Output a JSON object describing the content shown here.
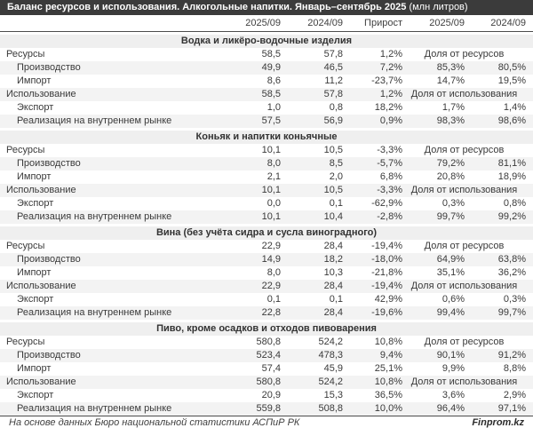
{
  "title": {
    "main": "Баланс ресурсов и использования. Алкогольные напитки. Январь–сентябрь 2025",
    "unit": " (млн литров)"
  },
  "colors": {
    "title_bar_bg": "#3b3b3b",
    "title_text": "#ffffff",
    "section_band_bg": "#efefef",
    "stripe_bg": "#f3f3f3",
    "rule_line": "#4d4d4d",
    "body_text": "#3a3a3a"
  },
  "chart_data": {
    "type": "table",
    "title": "Баланс ресурсов и использования. Алкогольные напитки. Январь–сентябрь 2025 (млн литров)",
    "columns": [
      "2025/09",
      "2024/09",
      "Прирост",
      "2025/09",
      "2024/09"
    ],
    "sections": [
      {
        "name": "Водка и ликёро-водочные изделия",
        "rows": [
          {
            "label": "Ресурсы",
            "indent": false,
            "values": [
              "58,5",
              "57,8",
              "1,2%"
            ],
            "span_label": "Доля от ресурсов"
          },
          {
            "label": "Производство",
            "indent": true,
            "values": [
              "49,9",
              "46,5",
              "7,2%",
              "85,3%",
              "80,5%"
            ]
          },
          {
            "label": "Импорт",
            "indent": true,
            "values": [
              "8,6",
              "11,2",
              "-23,7%",
              "14,7%",
              "19,5%"
            ]
          },
          {
            "label": "Использование",
            "indent": false,
            "values": [
              "58,5",
              "57,8",
              "1,2%"
            ],
            "span_label": "Доля от использования"
          },
          {
            "label": "Экспорт",
            "indent": true,
            "values": [
              "1,0",
              "0,8",
              "18,2%",
              "1,7%",
              "1,4%"
            ]
          },
          {
            "label": "Реализация на внутреннем рынке",
            "indent": true,
            "values": [
              "57,5",
              "56,9",
              "0,9%",
              "98,3%",
              "98,6%"
            ]
          }
        ]
      },
      {
        "name": "Коньяк и напитки коньячные",
        "rows": [
          {
            "label": "Ресурсы",
            "indent": false,
            "values": [
              "10,1",
              "10,5",
              "-3,3%"
            ],
            "span_label": "Доля от ресурсов"
          },
          {
            "label": "Производство",
            "indent": true,
            "values": [
              "8,0",
              "8,5",
              "-5,7%",
              "79,2%",
              "81,1%"
            ]
          },
          {
            "label": "Импорт",
            "indent": true,
            "values": [
              "2,1",
              "2,0",
              "6,8%",
              "20,8%",
              "18,9%"
            ]
          },
          {
            "label": "Использование",
            "indent": false,
            "values": [
              "10,1",
              "10,5",
              "-3,3%"
            ],
            "span_label": "Доля от использования"
          },
          {
            "label": "Экспорт",
            "indent": true,
            "values": [
              "0,0",
              "0,1",
              "-62,9%",
              "0,3%",
              "0,8%"
            ]
          },
          {
            "label": "Реализация на внутреннем рынке",
            "indent": true,
            "values": [
              "10,1",
              "10,4",
              "-2,8%",
              "99,7%",
              "99,2%"
            ]
          }
        ]
      },
      {
        "name": "Вина (без учёта сидра и сусла виноградного)",
        "rows": [
          {
            "label": "Ресурсы",
            "indent": false,
            "values": [
              "22,9",
              "28,4",
              "-19,4%"
            ],
            "span_label": "Доля от ресурсов"
          },
          {
            "label": "Производство",
            "indent": true,
            "values": [
              "14,9",
              "18,2",
              "-18,0%",
              "64,9%",
              "63,8%"
            ]
          },
          {
            "label": "Импорт",
            "indent": true,
            "values": [
              "8,0",
              "10,3",
              "-21,8%",
              "35,1%",
              "36,2%"
            ]
          },
          {
            "label": "Использование",
            "indent": false,
            "values": [
              "22,9",
              "28,4",
              "-19,4%"
            ],
            "span_label": "Доля от использования"
          },
          {
            "label": "Экспорт",
            "indent": true,
            "values": [
              "0,1",
              "0,1",
              "42,9%",
              "0,6%",
              "0,3%"
            ]
          },
          {
            "label": "Реализация на внутреннем рынке",
            "indent": true,
            "values": [
              "22,8",
              "28,4",
              "-19,6%",
              "99,4%",
              "99,7%"
            ]
          }
        ]
      },
      {
        "name": "Пиво, кроме осадков и отходов пивоварения",
        "rows": [
          {
            "label": "Ресурсы",
            "indent": false,
            "values": [
              "580,8",
              "524,2",
              "10,8%"
            ],
            "span_label": "Доля от ресурсов"
          },
          {
            "label": "Производство",
            "indent": true,
            "values": [
              "523,4",
              "478,3",
              "9,4%",
              "90,1%",
              "91,2%"
            ]
          },
          {
            "label": "Импорт",
            "indent": true,
            "values": [
              "57,4",
              "45,9",
              "25,1%",
              "9,9%",
              "8,8%"
            ]
          },
          {
            "label": "Использование",
            "indent": false,
            "values": [
              "580,8",
              "524,2",
              "10,8%"
            ],
            "span_label": "Доля от использования"
          },
          {
            "label": "Экспорт",
            "indent": true,
            "values": [
              "20,9",
              "15,3",
              "36,5%",
              "3,6%",
              "2,9%"
            ]
          },
          {
            "label": "Реализация на внутреннем рынке",
            "indent": true,
            "values": [
              "559,8",
              "508,8",
              "10,0%",
              "96,4%",
              "97,1%"
            ]
          }
        ]
      }
    ]
  },
  "footer": {
    "source": "На основе данных Бюро национальной статистики АСПиР РК",
    "brand": "Finprom.kz"
  }
}
